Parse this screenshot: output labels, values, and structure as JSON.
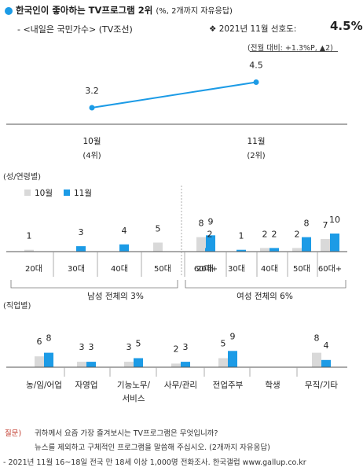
{
  "header": {
    "title": "한국인이 좋아하는 TV프로그램 2위",
    "title_note": "(%, 2개까지 자유응답)",
    "program": "- <내일은 국민가수> (TV조선)",
    "pref_label": "❖ 2021년 11월 선호도:",
    "pref_value": "4.5%",
    "change": "(전월 대비: +1.3%P, ▲2)"
  },
  "colors": {
    "oct": "#d9d9d9",
    "nov": "#1c9be6",
    "accent": "#1c9be6"
  },
  "chart_data": [
    {
      "type": "line",
      "categories": [
        "10월",
        "11월"
      ],
      "category_ranks": [
        "(4위)",
        "(2위)"
      ],
      "values": [
        3.2,
        4.5
      ]
    },
    {
      "type": "bar",
      "section_label": "(성/연령별)",
      "legend": [
        "10월",
        "11월"
      ],
      "categories": [
        "20대",
        "30대",
        "40대",
        "50대",
        "60대+",
        "20대",
        "30대",
        "40대",
        "50대",
        "60대+"
      ],
      "series": [
        {
          "name": "10월",
          "values": [
            1,
            null,
            null,
            5,
            8,
            null,
            null,
            2,
            2,
            7
          ],
          "labels": [
            "1",
            "",
            "",
            "5",
            "8",
            "",
            "",
            "2",
            "2",
            "7"
          ]
        },
        {
          "name": "11월",
          "values": [
            0,
            3,
            4,
            0,
            9,
            2,
            1,
            2,
            8,
            10
          ],
          "labels": [
            "",
            "3",
            "4",
            "",
            "9",
            "2",
            "1",
            "2",
            "8",
            "10"
          ]
        }
      ],
      "groups": [
        {
          "label": "남성 전체의 3%"
        },
        {
          "label": "여성 전체의 6%"
        }
      ]
    },
    {
      "type": "bar",
      "section_label": "(직업별)",
      "categories": [
        "농/임/어업",
        "자영업",
        "기능노무/\n서비스",
        "사무/관리",
        "전업주부",
        "학생",
        "무직/기타"
      ],
      "category_lines": [
        [
          "농/임/어업"
        ],
        [
          "자영업"
        ],
        [
          "기능노무/",
          "서비스"
        ],
        [
          "사무/관리"
        ],
        [
          "전업주부"
        ],
        [
          "학생"
        ],
        [
          "무직/기타"
        ]
      ],
      "series": [
        {
          "name": "10월",
          "values": [
            6,
            3,
            3,
            2,
            5,
            null,
            8
          ],
          "labels": [
            "6",
            "3",
            "3",
            "2",
            "5",
            "",
            "8"
          ]
        },
        {
          "name": "11월",
          "values": [
            8,
            3,
            5,
            3,
            9,
            null,
            4
          ],
          "labels": [
            "8",
            "3",
            "5",
            "3",
            "9",
            "",
            "4"
          ]
        }
      ]
    }
  ],
  "footer": {
    "question_label": "질문)",
    "question_line1": "귀하께서 요즘 가장 즐겨보시는 TV프로그램은 무엇입니까?",
    "question_line2": "뉴스를 제외하고 구체적인 프로그램을 말씀해 주십시오. (2개까지 자유응답)",
    "source": "- 2021년 11월 16~18일 전국 만 18세 이상 1,000명 전화조사. 한국갤럽 www.gallup.co.kr"
  }
}
